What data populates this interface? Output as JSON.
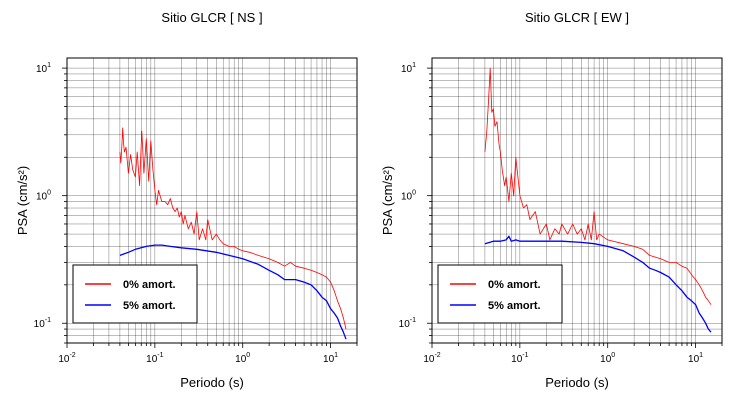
{
  "chart_data": [
    {
      "type": "line",
      "title": "Sitio GLCR [ NS ]",
      "xlabel": "Periodo (s)",
      "ylabel": "PSA (cm/s²)",
      "xscale": "log",
      "yscale": "log",
      "xlim": [
        0.01,
        20
      ],
      "ylim": [
        0.07,
        12
      ],
      "grid": true,
      "legend_position": "bottom-left",
      "xticks": [
        {
          "value": 0.01,
          "base": "10",
          "exp": "-2"
        },
        {
          "value": 0.1,
          "base": "10",
          "exp": "-1"
        },
        {
          "value": 1,
          "base": "10",
          "exp": "0"
        },
        {
          "value": 10,
          "base": "10",
          "exp": "1"
        }
      ],
      "yticks": [
        {
          "value": 0.1,
          "base": "10",
          "exp": "-1"
        },
        {
          "value": 1,
          "base": "10",
          "exp": "0"
        },
        {
          "value": 10,
          "base": "10",
          "exp": "1"
        }
      ],
      "series": [
        {
          "name": "0% amort.",
          "color": "#ff0000",
          "x": [
            0.04,
            0.041,
            0.042,
            0.043,
            0.044,
            0.045,
            0.047,
            0.05,
            0.053,
            0.056,
            0.06,
            0.063,
            0.067,
            0.071,
            0.075,
            0.08,
            0.085,
            0.09,
            0.095,
            0.1,
            0.105,
            0.11,
            0.12,
            0.13,
            0.14,
            0.15,
            0.16,
            0.17,
            0.18,
            0.19,
            0.2,
            0.21,
            0.22,
            0.24,
            0.26,
            0.28,
            0.3,
            0.32,
            0.35,
            0.38,
            0.4,
            0.45,
            0.5,
            0.55,
            0.6,
            0.7,
            0.8,
            0.9,
            1.0,
            1.2,
            1.5,
            2.0,
            2.5,
            3.0,
            3.5,
            4.0,
            5.0,
            6.0,
            7.0,
            8.0,
            9.0,
            10.0,
            11.0,
            12.0,
            13.0,
            14.0,
            15.0
          ],
          "y": [
            2.2,
            1.8,
            2.4,
            3.4,
            2.6,
            2.2,
            2.4,
            1.5,
            2.1,
            1.6,
            1.4,
            2.2,
            1.2,
            3.2,
            1.5,
            2.8,
            1.3,
            2.7,
            1.6,
            1.1,
            0.85,
            1.1,
            0.9,
            0.9,
            0.85,
            0.95,
            0.8,
            0.75,
            0.8,
            0.68,
            0.75,
            0.6,
            0.7,
            0.55,
            0.62,
            0.5,
            0.75,
            0.45,
            0.55,
            0.45,
            0.65,
            0.45,
            0.5,
            0.45,
            0.42,
            0.4,
            0.4,
            0.38,
            0.37,
            0.36,
            0.34,
            0.32,
            0.3,
            0.28,
            0.3,
            0.28,
            0.27,
            0.26,
            0.25,
            0.24,
            0.23,
            0.21,
            0.18,
            0.15,
            0.13,
            0.11,
            0.09
          ]
        },
        {
          "name": "5% amort.",
          "color": "#0000ff",
          "x": [
            0.04,
            0.05,
            0.06,
            0.07,
            0.08,
            0.1,
            0.12,
            0.15,
            0.2,
            0.3,
            0.5,
            0.7,
            1.0,
            1.5,
            2.0,
            2.5,
            3.0,
            3.5,
            4.0,
            5.0,
            6.0,
            7.0,
            8.0,
            9.0,
            10.0,
            11.0,
            12.0,
            13.0,
            14.0,
            15.0
          ],
          "y": [
            0.34,
            0.36,
            0.38,
            0.39,
            0.4,
            0.41,
            0.41,
            0.4,
            0.39,
            0.38,
            0.36,
            0.34,
            0.32,
            0.29,
            0.26,
            0.24,
            0.22,
            0.22,
            0.22,
            0.21,
            0.2,
            0.18,
            0.16,
            0.15,
            0.13,
            0.12,
            0.11,
            0.095,
            0.085,
            0.075
          ]
        }
      ]
    },
    {
      "type": "line",
      "title": "Sitio GLCR [ EW ]",
      "xlabel": "Periodo (s)",
      "ylabel": "PSA (cm/s²)",
      "xscale": "log",
      "yscale": "log",
      "xlim": [
        0.01,
        20
      ],
      "ylim": [
        0.07,
        12
      ],
      "grid": true,
      "legend_position": "bottom-left",
      "xticks": [
        {
          "value": 0.01,
          "base": "10",
          "exp": "-2"
        },
        {
          "value": 0.1,
          "base": "10",
          "exp": "-1"
        },
        {
          "value": 1,
          "base": "10",
          "exp": "0"
        },
        {
          "value": 10,
          "base": "10",
          "exp": "1"
        }
      ],
      "yticks": [
        {
          "value": 0.1,
          "base": "10",
          "exp": "-1"
        },
        {
          "value": 1,
          "base": "10",
          "exp": "0"
        },
        {
          "value": 10,
          "base": "10",
          "exp": "1"
        }
      ],
      "series": [
        {
          "name": "0% amort.",
          "color": "#ff0000",
          "x": [
            0.04,
            0.042,
            0.044,
            0.046,
            0.048,
            0.05,
            0.052,
            0.055,
            0.058,
            0.06,
            0.063,
            0.067,
            0.07,
            0.075,
            0.08,
            0.085,
            0.09,
            0.1,
            0.11,
            0.12,
            0.13,
            0.15,
            0.17,
            0.2,
            0.22,
            0.25,
            0.28,
            0.3,
            0.35,
            0.4,
            0.45,
            0.5,
            0.55,
            0.6,
            0.65,
            0.7,
            0.75,
            0.8,
            1.0,
            1.5,
            2.0,
            2.5,
            3.0,
            4.0,
            5.0,
            6.0,
            7.0,
            8.0,
            9.0,
            10.0,
            11.0,
            12.0,
            13.0,
            14.0,
            15.0
          ],
          "y": [
            2.2,
            3.2,
            5.5,
            10.0,
            4.5,
            4.8,
            3.5,
            3.8,
            2.5,
            2.2,
            1.6,
            1.2,
            1.4,
            0.9,
            1.5,
            1.0,
            2.0,
            1.0,
            0.8,
            0.85,
            0.65,
            0.75,
            0.5,
            0.6,
            0.45,
            0.55,
            0.5,
            0.6,
            0.5,
            0.6,
            0.5,
            0.55,
            0.45,
            0.6,
            0.45,
            0.75,
            0.45,
            0.5,
            0.45,
            0.42,
            0.4,
            0.38,
            0.34,
            0.32,
            0.3,
            0.3,
            0.28,
            0.27,
            0.24,
            0.22,
            0.2,
            0.18,
            0.16,
            0.15,
            0.14
          ]
        },
        {
          "name": "5% amort.",
          "color": "#0000ff",
          "x": [
            0.04,
            0.05,
            0.06,
            0.07,
            0.075,
            0.08,
            0.09,
            0.1,
            0.15,
            0.2,
            0.3,
            0.5,
            0.7,
            1.0,
            1.5,
            2.0,
            2.5,
            3.0,
            3.5,
            4.0,
            5.0,
            6.0,
            7.0,
            8.0,
            9.0,
            10.0,
            11.0,
            12.0,
            13.0,
            14.0,
            15.0
          ],
          "y": [
            0.42,
            0.44,
            0.44,
            0.45,
            0.48,
            0.44,
            0.45,
            0.44,
            0.44,
            0.44,
            0.44,
            0.43,
            0.42,
            0.4,
            0.37,
            0.33,
            0.3,
            0.27,
            0.26,
            0.25,
            0.23,
            0.2,
            0.18,
            0.16,
            0.15,
            0.14,
            0.12,
            0.11,
            0.1,
            0.09,
            0.085
          ]
        }
      ]
    }
  ]
}
